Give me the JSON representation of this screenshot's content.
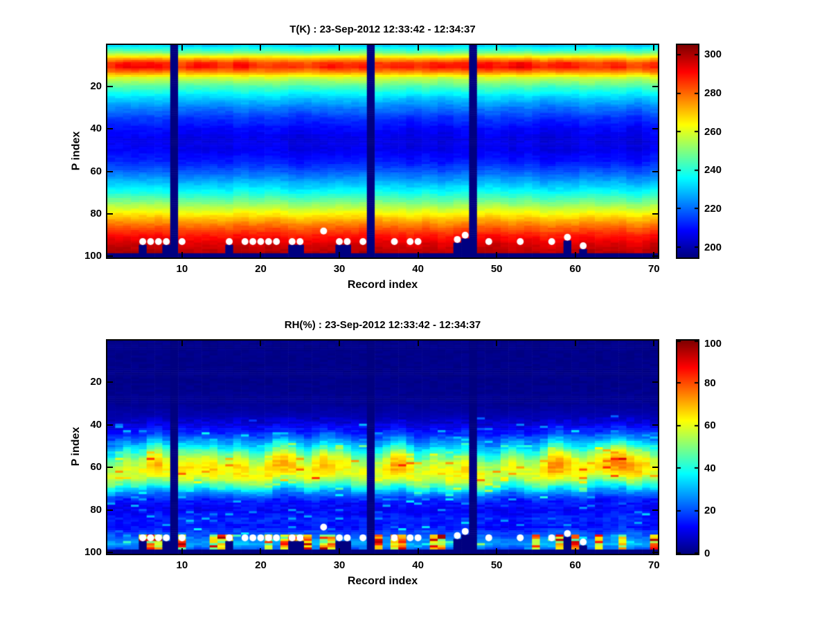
{
  "figure": {
    "background": "#ffffff"
  },
  "chart_data": [
    {
      "type": "heatmap",
      "title": "T(K) : 23-Sep-2012 12:33:42 - 12:34:37",
      "xlabel": "Record index",
      "ylabel": "P index",
      "colormap": "jet",
      "x_range": [
        1,
        70
      ],
      "y_range": [
        1,
        100
      ],
      "y_direction": "reverse",
      "xticks": [
        10,
        20,
        30,
        40,
        50,
        60,
        70
      ],
      "yticks": [
        20,
        40,
        60,
        80,
        100
      ],
      "clim": [
        195,
        305
      ],
      "colorbar_ticks": [
        200,
        220,
        240,
        260,
        280,
        300
      ],
      "profile": {
        "p": [
          1,
          4,
          7,
          9,
          11,
          13,
          16,
          20,
          25,
          30,
          35,
          40,
          45,
          50,
          55,
          60,
          65,
          70,
          74,
          78,
          82,
          86,
          90,
          94,
          98,
          100
        ],
        "value": [
          232,
          248,
          272,
          286,
          288,
          278,
          258,
          245,
          232,
          222,
          214,
          209,
          206,
          207,
          211,
          218,
          228,
          238,
          248,
          259,
          270,
          280,
          289,
          295,
          299,
          300
        ]
      },
      "noise": {
        "column_amp": 3,
        "band_center": 10,
        "band_sigma": 3,
        "band_amp": 7,
        "cell_noise": 1.5,
        "band_shift": 0,
        "seed": 7
      },
      "missing_columns": [
        9,
        34,
        47
      ],
      "missing_bottom_rows": 2,
      "masked_columns": [
        5,
        8,
        16,
        24,
        25,
        30,
        31,
        45,
        46,
        59,
        61
      ],
      "white_dots": {
        "records": [
          5,
          6,
          7,
          8,
          10,
          16,
          18,
          19,
          20,
          21,
          22,
          24,
          25,
          28,
          30,
          31,
          33,
          37,
          39,
          40,
          45,
          46,
          49,
          53,
          57,
          59,
          61
        ],
        "p": [
          93,
          93,
          93,
          93,
          93,
          93,
          93,
          93,
          93,
          93,
          93,
          93,
          93,
          88,
          93,
          93,
          93,
          93,
          93,
          93,
          92,
          90,
          93,
          93,
          93,
          91,
          95
        ]
      }
    },
    {
      "type": "heatmap",
      "title": "RH(%) : 23-Sep-2012 12:33:42 - 12:34:37",
      "xlabel": "Record index",
      "ylabel": "P index",
      "colormap": "jet",
      "x_range": [
        1,
        70
      ],
      "y_range": [
        1,
        100
      ],
      "y_direction": "reverse",
      "xticks": [
        10,
        20,
        30,
        40,
        50,
        60,
        70
      ],
      "yticks": [
        20,
        40,
        60,
        80,
        100
      ],
      "clim": [
        0,
        100
      ],
      "colorbar_ticks": [
        0,
        20,
        40,
        60,
        80,
        100
      ],
      "profile": {
        "p": [
          1,
          20,
          30,
          36,
          40,
          44,
          48,
          52,
          56,
          60,
          64,
          68,
          72,
          76,
          80,
          84,
          88,
          92,
          96,
          100
        ],
        "value": [
          1,
          1,
          2,
          5,
          10,
          18,
          30,
          45,
          60,
          66,
          62,
          45,
          25,
          14,
          12,
          16,
          14,
          22,
          30,
          15
        ]
      },
      "noise": {
        "column_amp": 8,
        "band_center": 60,
        "band_sigma": 10,
        "band_amp": 9,
        "cell_noise": 3,
        "band_shift": 4,
        "speckle_prob": 0.07,
        "speckle_amp": 20,
        "bottom_spots": true,
        "value_scaled": true,
        "seed": 11
      },
      "missing_columns": [
        9,
        34,
        47
      ],
      "missing_bottom_rows": 2,
      "masked_columns": [
        5,
        8,
        16,
        24,
        25,
        30,
        31,
        45,
        46,
        59,
        61
      ],
      "white_dots": {
        "records": [
          5,
          6,
          7,
          8,
          10,
          16,
          18,
          19,
          20,
          21,
          22,
          24,
          25,
          28,
          30,
          31,
          33,
          37,
          39,
          40,
          45,
          46,
          49,
          53,
          57,
          59,
          61
        ],
        "p": [
          93,
          93,
          93,
          93,
          93,
          93,
          93,
          93,
          93,
          93,
          93,
          93,
          93,
          88,
          93,
          93,
          93,
          93,
          93,
          93,
          92,
          90,
          93,
          93,
          93,
          91,
          95
        ]
      }
    }
  ]
}
